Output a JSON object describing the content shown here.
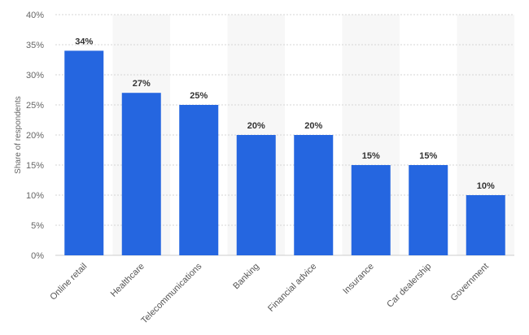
{
  "chart_data": {
    "type": "bar",
    "title": "",
    "xlabel": "",
    "ylabel": "Share of respondents",
    "categories": [
      "Online retail",
      "Healthcare",
      "Telecommunications",
      "Banking",
      "Financial advice",
      "Insurance",
      "Car dealership",
      "Government"
    ],
    "values": [
      34,
      27,
      25,
      20,
      20,
      15,
      15,
      10
    ],
    "data_labels": [
      "34%",
      "27%",
      "25%",
      "20%",
      "20%",
      "15%",
      "15%",
      "10%"
    ],
    "ylim": [
      0,
      40
    ],
    "yticks": [
      0,
      5,
      10,
      15,
      20,
      25,
      30,
      35,
      40
    ],
    "ytick_labels": [
      "0%",
      "5%",
      "10%",
      "15%",
      "20%",
      "25%",
      "30%",
      "35%",
      "40%"
    ],
    "grid": true,
    "legend": "none",
    "bar_color": "#2566e0",
    "band_color": "#f7f7f7"
  }
}
